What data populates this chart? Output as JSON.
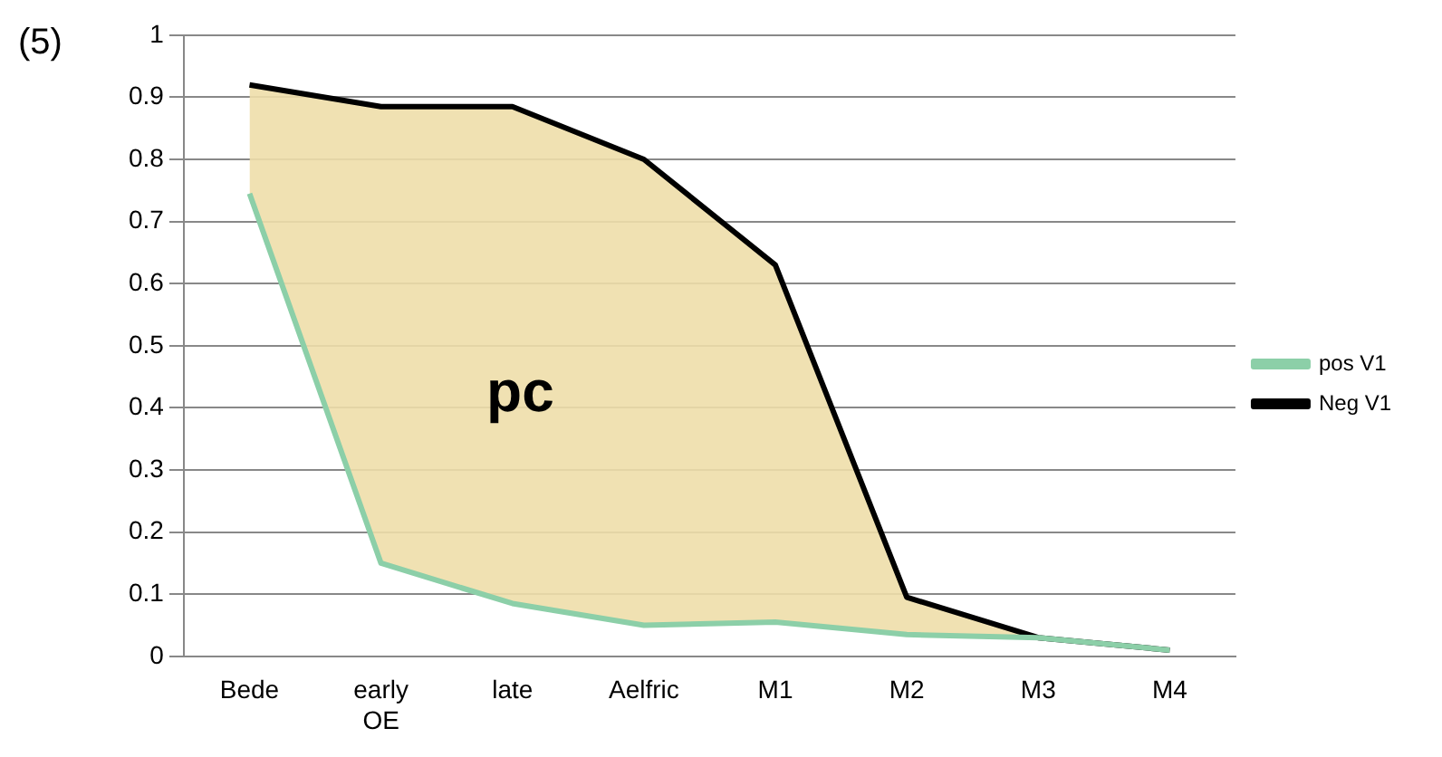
{
  "chart_data": {
    "type": "line",
    "categories": [
      "Bede",
      "early OE",
      "late",
      "Aelfric",
      "M1",
      "M2",
      "M3",
      "M4"
    ],
    "series": [
      {
        "name": "pos V1",
        "color": "#8ccfa8",
        "values": [
          0.745,
          0.15,
          0.085,
          0.05,
          0.055,
          0.035,
          0.03,
          0.01
        ]
      },
      {
        "name": "Neg V1",
        "type": "area",
        "color": "#000000",
        "values": [
          0.92,
          0.885,
          0.885,
          0.8,
          0.63,
          0.095,
          0.03,
          0.01
        ]
      }
    ],
    "ylim": [
      0,
      1
    ],
    "yticks": [
      0,
      0.1,
      0.2,
      0.3,
      0.4,
      0.5,
      0.6,
      0.7,
      0.8,
      0.9,
      1
    ],
    "grid": "y",
    "legend": "right",
    "marker": "none",
    "annotations": [
      "(5)",
      "pc"
    ]
  }
}
